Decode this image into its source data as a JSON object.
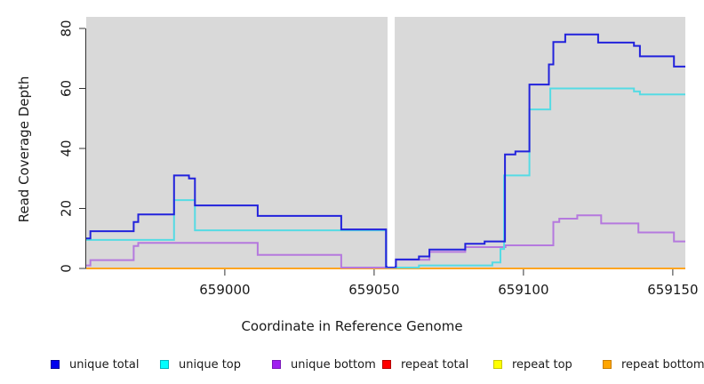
{
  "figure": {
    "background": "#ffffff",
    "plot_background": "#d9d9d9",
    "axis_color": "#333333",
    "text_color": "#1a1a1a"
  },
  "chart_data": {
    "type": "line",
    "subtype": "step",
    "title": "",
    "xlabel": "Coordinate in Reference Genome",
    "ylabel": "Read Coverage Depth",
    "xlim": [
      658953.6,
      659154.2
    ],
    "ylim": [
      0,
      80
    ],
    "x_ticks": [
      659000,
      659050,
      659100,
      659150
    ],
    "y_ticks": [
      0,
      20,
      40,
      60,
      80
    ],
    "grid": false,
    "legend_position": "bottom",
    "gap_region": {
      "from": 659054.5,
      "to": 659056.9,
      "color": "#ffffff"
    },
    "series": [
      {
        "name": "unique total",
        "color": "#2222dc",
        "swatch": "#0000ee",
        "swatch_border": "#000099",
        "z": 6,
        "points": [
          [
            658953.6,
            10
          ],
          [
            658955,
            12.4
          ],
          [
            658969.5,
            15.5
          ],
          [
            658971,
            18
          ],
          [
            658983,
            31
          ],
          [
            658988,
            30
          ],
          [
            658990,
            21
          ],
          [
            659011,
            17.5
          ],
          [
            659039,
            13
          ],
          [
            659054,
            0.5
          ],
          [
            659057.3,
            3
          ],
          [
            659065,
            4
          ],
          [
            659068.5,
            6.3
          ],
          [
            659080.5,
            8.2
          ],
          [
            659087,
            9
          ],
          [
            659093.8,
            38
          ],
          [
            659097.3,
            39
          ],
          [
            659102,
            61.3
          ],
          [
            659108.5,
            68
          ],
          [
            659110,
            75.5
          ],
          [
            659114,
            78
          ],
          [
            659125,
            75.3
          ],
          [
            659137,
            74.2
          ],
          [
            659139,
            70.7
          ],
          [
            659150.4,
            67.3
          ]
        ]
      },
      {
        "name": "unique top",
        "color": "#55dbe4",
        "swatch": "#00ffff",
        "swatch_border": "#00b3be",
        "z": 5,
        "points": [
          [
            658953.6,
            9.5
          ],
          [
            658983,
            22.8
          ],
          [
            658990,
            12.7
          ],
          [
            659054,
            0.4
          ],
          [
            659057.3,
            0.3
          ],
          [
            659065,
            1
          ],
          [
            659089.6,
            2
          ],
          [
            659092.3,
            6.5
          ],
          [
            659093.5,
            31
          ],
          [
            659102,
            53
          ],
          [
            659109,
            60
          ],
          [
            659137,
            59
          ],
          [
            659139,
            58
          ]
        ]
      },
      {
        "name": "unique bottom",
        "color": "#b579de",
        "swatch": "#a020f0",
        "swatch_border": "#7a18b8",
        "z": 4,
        "points": [
          [
            658953.6,
            1
          ],
          [
            658955,
            2.8
          ],
          [
            658969.5,
            7.5
          ],
          [
            658971,
            8.5
          ],
          [
            659011,
            4.5
          ],
          [
            659039,
            0.3
          ],
          [
            659057.3,
            2.9
          ],
          [
            659068.5,
            5.5
          ],
          [
            659080.5,
            7.1
          ],
          [
            659094,
            7.7
          ],
          [
            659110,
            15.5
          ],
          [
            659112,
            16.6
          ],
          [
            659118,
            17.7
          ],
          [
            659126,
            15
          ],
          [
            659138.5,
            12
          ],
          [
            659150.4,
            9
          ]
        ]
      },
      {
        "name": "repeat total",
        "color": "#dd2222",
        "swatch": "#ff0000",
        "swatch_border": "#b30000",
        "z": 1,
        "points": [
          [
            658953.6,
            0
          ]
        ]
      },
      {
        "name": "repeat top",
        "color": "#f0f000",
        "swatch": "#ffff00",
        "swatch_border": "#c8c800",
        "z": 2,
        "points": [
          [
            658953.6,
            0
          ]
        ]
      },
      {
        "name": "repeat bottom",
        "color": "#ffa520",
        "swatch": "#ffa500",
        "swatch_border": "#c87d00",
        "z": 3,
        "points": [
          [
            658953.6,
            0
          ]
        ]
      }
    ]
  }
}
